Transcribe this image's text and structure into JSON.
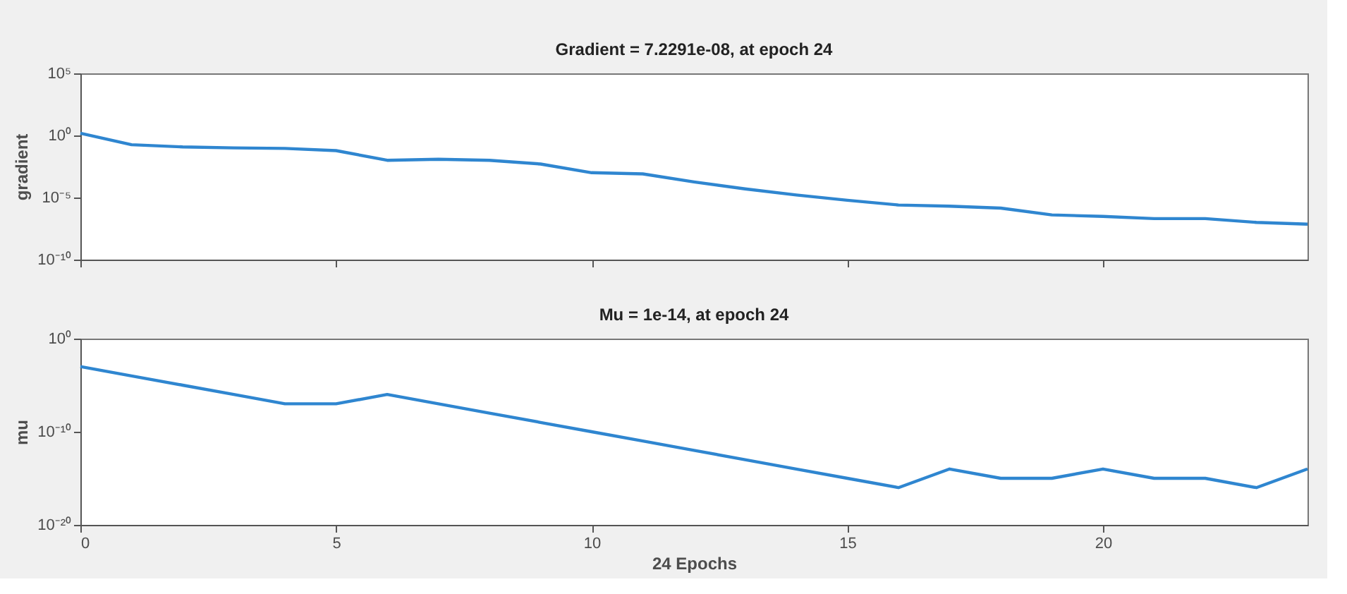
{
  "chart_data": [
    {
      "type": "line",
      "title": "Gradient = 7.2291e-08, at epoch 24",
      "ylabel": "gradient",
      "log": "y",
      "legend": false,
      "grid": false,
      "marker": "none",
      "line_style": "solid",
      "tick_labels": "y",
      "x": [
        0,
        1,
        2,
        3,
        4,
        5,
        6,
        7,
        8,
        9,
        10,
        11,
        12,
        13,
        14,
        15,
        16,
        17,
        18,
        19,
        20,
        21,
        22,
        23,
        24
      ],
      "series": [
        {
          "color": "#2f86d0",
          "values": [
            1.5,
            0.18,
            0.12,
            0.1,
            0.09,
            0.06,
            0.01,
            0.012,
            0.01,
            0.005,
            0.001,
            0.0008,
            0.00018,
            5e-05,
            1.6e-05,
            6e-06,
            2.5e-06,
            2e-06,
            1.4e-06,
            4e-07,
            3e-07,
            2e-07,
            2e-07,
            1e-07,
            7.2291e-08
          ]
        }
      ],
      "xlim": [
        0,
        24
      ],
      "xticks": [
        {
          "value": 0,
          "label": null
        },
        {
          "value": 5,
          "label": null
        },
        {
          "value": 10,
          "label": null
        },
        {
          "value": 15,
          "label": null
        },
        {
          "value": 20,
          "label": null
        }
      ],
      "ylim": [
        1e-10,
        100000
      ],
      "yticks": [
        {
          "value": 1e-10,
          "label": "10⁻¹⁰"
        },
        {
          "value": 1e-05,
          "label": "10⁻⁵"
        },
        {
          "value": 1,
          "label": "10⁰"
        },
        {
          "value": 100000,
          "label": "10⁵"
        }
      ]
    },
    {
      "type": "line",
      "title": "Mu = 1e-14, at epoch 24",
      "ylabel": "mu",
      "xlabel": "24 Epochs",
      "log": "y",
      "legend": false,
      "grid": false,
      "marker": "none",
      "line_style": "solid",
      "x": [
        0,
        1,
        2,
        3,
        4,
        5,
        6,
        7,
        8,
        9,
        10,
        11,
        12,
        13,
        14,
        15,
        16,
        17,
        18,
        19,
        20,
        21,
        22,
        23,
        24
      ],
      "series": [
        {
          "color": "#2f86d0",
          "values": [
            0.001,
            0.0001,
            1e-05,
            1e-06,
            1e-07,
            1e-07,
            1e-06,
            1e-07,
            1e-08,
            1e-09,
            1e-10,
            1e-11,
            1e-12,
            1e-13,
            1e-14,
            1e-15,
            1e-16,
            1e-14,
            1e-15,
            1e-15,
            1e-14,
            1e-15,
            1e-15,
            1e-16,
            1e-14
          ]
        }
      ],
      "xlim": [
        0,
        24
      ],
      "xticks": [
        0,
        5,
        10,
        15,
        20
      ],
      "ylim": [
        1e-20,
        1
      ],
      "yticks": [
        {
          "value": 1e-20,
          "label": "10⁻²⁰"
        },
        {
          "value": 1e-10,
          "label": "10⁻¹⁰"
        },
        {
          "value": 1,
          "label": "10⁰"
        }
      ]
    }
  ]
}
